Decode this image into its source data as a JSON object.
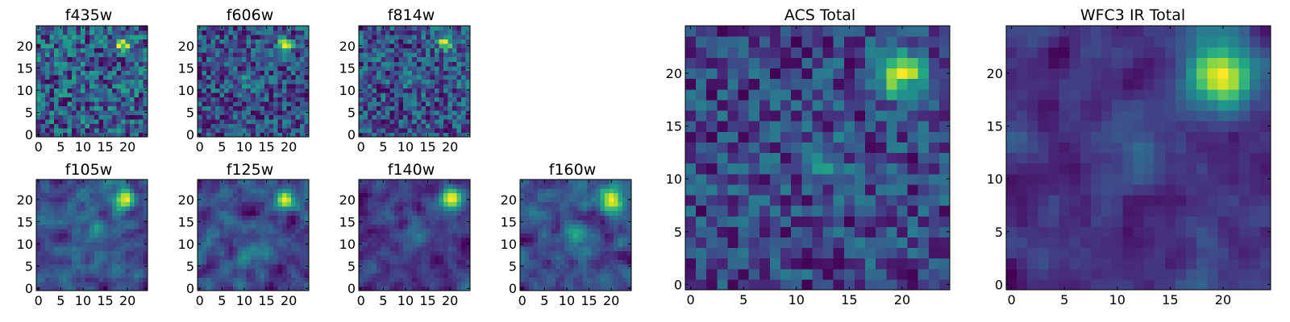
{
  "figure": {
    "colormap": "viridis",
    "background": "#ffffff",
    "panels": [
      {
        "title": "f435w",
        "grid": 25,
        "seed": 11,
        "noise": 0.34,
        "smooth": 0,
        "sources": [
          {
            "x": 19,
            "y": 20,
            "amp": 0.6,
            "sigma": 1.1
          }
        ],
        "xticks": [
          "0",
          "5",
          "10",
          "15",
          "20"
        ],
        "yticks": [
          "0",
          "5",
          "10",
          "15",
          "20"
        ]
      },
      {
        "title": "f606w",
        "grid": 25,
        "seed": 22,
        "noise": 0.3,
        "smooth": 0,
        "sources": [
          {
            "x": 19,
            "y": 20,
            "amp": 0.62,
            "sigma": 1.3
          },
          {
            "x": 11,
            "y": 12,
            "amp": 0.22,
            "sigma": 1.2
          }
        ],
        "xticks": [
          "0",
          "5",
          "10",
          "15",
          "20"
        ],
        "yticks": [
          "0",
          "5",
          "10",
          "15",
          "20"
        ]
      },
      {
        "title": "f814w",
        "grid": 25,
        "seed": 33,
        "noise": 0.32,
        "smooth": 0,
        "sources": [
          {
            "x": 19,
            "y": 21,
            "amp": 0.6,
            "sigma": 1.2
          },
          {
            "x": 12,
            "y": 12,
            "amp": 0.22,
            "sigma": 1.1
          }
        ],
        "xticks": [
          "0",
          "5",
          "10",
          "15",
          "20"
        ],
        "yticks": [
          "0",
          "5",
          "10",
          "15",
          "20"
        ]
      },
      {
        "title": "f105w",
        "grid": 25,
        "seed": 44,
        "noise": 0.3,
        "smooth": 1,
        "sources": [
          {
            "x": 19,
            "y": 20,
            "amp": 0.65,
            "sigma": 1.4
          },
          {
            "x": 14,
            "y": 13,
            "amp": 0.22,
            "sigma": 1.3
          }
        ],
        "xticks": [
          "0",
          "5",
          "10",
          "15",
          "20"
        ],
        "yticks": [
          "0",
          "5",
          "10",
          "15",
          "20"
        ]
      },
      {
        "title": "f125w",
        "grid": 25,
        "seed": 55,
        "noise": 0.3,
        "smooth": 1,
        "sources": [
          {
            "x": 19,
            "y": 20,
            "amp": 0.65,
            "sigma": 1.4
          },
          {
            "x": 14,
            "y": 13,
            "amp": 0.18,
            "sigma": 1.3
          }
        ],
        "xticks": [
          "0",
          "5",
          "10",
          "15",
          "20"
        ],
        "yticks": [
          "0",
          "5",
          "10",
          "15",
          "20"
        ]
      },
      {
        "title": "f140w",
        "grid": 25,
        "seed": 66,
        "noise": 0.3,
        "smooth": 1,
        "sources": [
          {
            "x": 20,
            "y": 20,
            "amp": 0.72,
            "sigma": 1.7
          },
          {
            "x": 12,
            "y": 12,
            "amp": 0.22,
            "sigma": 1.5
          }
        ],
        "xticks": [
          "0",
          "5",
          "10",
          "15",
          "20"
        ],
        "yticks": [
          "0",
          "5",
          "10",
          "15",
          "20"
        ]
      },
      {
        "title": "f160w",
        "grid": 25,
        "seed": 77,
        "noise": 0.3,
        "smooth": 1,
        "sources": [
          {
            "x": 20,
            "y": 20,
            "amp": 0.72,
            "sigma": 1.7
          },
          {
            "x": 12,
            "y": 12,
            "amp": 0.22,
            "sigma": 1.5
          }
        ],
        "xticks": [
          "0",
          "5",
          "10",
          "15",
          "20"
        ],
        "yticks": [
          "0",
          "5",
          "10",
          "15",
          "20"
        ]
      },
      {
        "title": "ACS Total",
        "grid": 25,
        "seed": 88,
        "noise": 0.3,
        "smooth": 0,
        "sources": [
          {
            "x": 20,
            "y": 20,
            "amp": 0.75,
            "sigma": 1.6
          },
          {
            "x": 12,
            "y": 12,
            "amp": 0.25,
            "sigma": 1.5
          }
        ],
        "xticks": [
          "0",
          "5",
          "10",
          "15",
          "20"
        ],
        "yticks": [
          "0",
          "5",
          "10",
          "15",
          "20"
        ]
      },
      {
        "title": "WFC3 IR Total",
        "grid": 25,
        "seed": 99,
        "noise": 0.24,
        "smooth": 1,
        "sources": [
          {
            "x": 20,
            "y": 20,
            "amp": 0.8,
            "sigma": 2.0
          },
          {
            "x": 12,
            "y": 12,
            "amp": 0.2,
            "sigma": 1.8
          }
        ],
        "xticks": [
          "0",
          "5",
          "10",
          "15",
          "20"
        ],
        "yticks": [
          "0",
          "5",
          "10",
          "15",
          "20"
        ]
      }
    ]
  }
}
